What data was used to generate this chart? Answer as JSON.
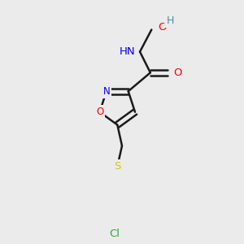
{
  "bg_color": "#ebebeb",
  "bond_color": "#1a1a1a",
  "atom_colors": {
    "O": "#ff0000",
    "N": "#0000ee",
    "S": "#cccc00",
    "Cl": "#33aa33",
    "H": "#4a8fa0"
  },
  "bond_width": 1.8,
  "dbo": 0.012,
  "figsize": [
    3.0,
    3.0
  ],
  "dpi": 100
}
